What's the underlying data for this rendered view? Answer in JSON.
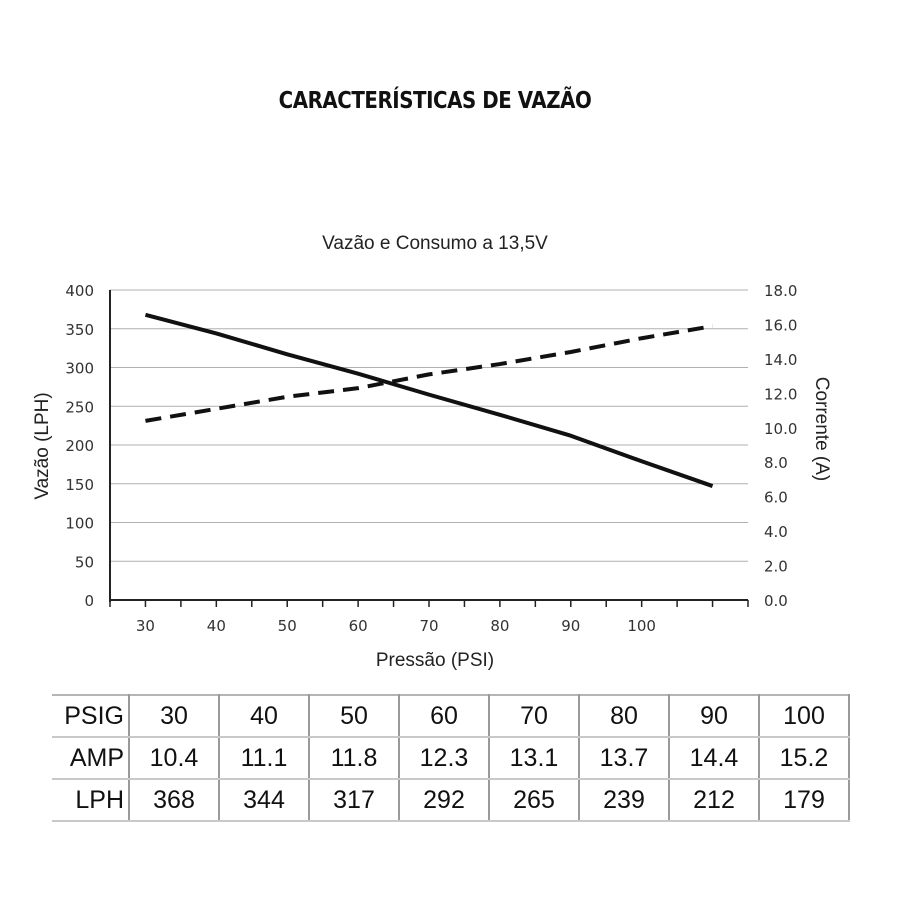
{
  "page": {
    "heading": "CARACTERÍSTICAS DE VAZÃO"
  },
  "chart_data": {
    "type": "line",
    "title": "Vazão e Consumo a 13,5V",
    "xlabel": "Pressão (PSI)",
    "ylabel": "Vazão (LPH)",
    "y2label": "Corrente (A)",
    "x_ticks": [
      "30",
      "40",
      "50",
      "60",
      "70",
      "80",
      "90",
      "100"
    ],
    "y_ticks": [
      "0",
      "50",
      "100",
      "150",
      "200",
      "250",
      "300",
      "350",
      "400"
    ],
    "y2_ticks": [
      "0.0",
      "2.0",
      "4.0",
      "6.0",
      "8.0",
      "10.0",
      "12.0",
      "14.0",
      "16.0",
      "18.0"
    ],
    "xlim": [
      25,
      115
    ],
    "ylim": [
      0,
      400
    ],
    "y2lim": [
      0,
      18
    ],
    "grid": "horizontal",
    "series": [
      {
        "axis": "left",
        "style": "solid",
        "x": [
          30,
          40,
          50,
          60,
          70,
          80,
          90,
          100,
          110
        ],
        "values": [
          368,
          344,
          317,
          292,
          265,
          239,
          212,
          179,
          147
        ]
      },
      {
        "axis": "right",
        "style": "dashed",
        "x": [
          30,
          40,
          50,
          60,
          70,
          80,
          90,
          100,
          110
        ],
        "values": [
          10.4,
          11.1,
          11.8,
          12.3,
          13.1,
          13.7,
          14.4,
          15.2,
          15.9
        ]
      }
    ]
  },
  "table": {
    "rows": [
      {
        "label": "PSIG",
        "cells": [
          "30",
          "40",
          "50",
          "60",
          "70",
          "80",
          "90",
          "100"
        ]
      },
      {
        "label": "AMP",
        "cells": [
          "10.4",
          "11.1",
          "11.8",
          "12.3",
          "13.1",
          "13.7",
          "14.4",
          "15.2"
        ]
      },
      {
        "label": "LPH",
        "cells": [
          "368",
          "344",
          "317",
          "292",
          "265",
          "239",
          "212",
          "179"
        ]
      }
    ]
  }
}
